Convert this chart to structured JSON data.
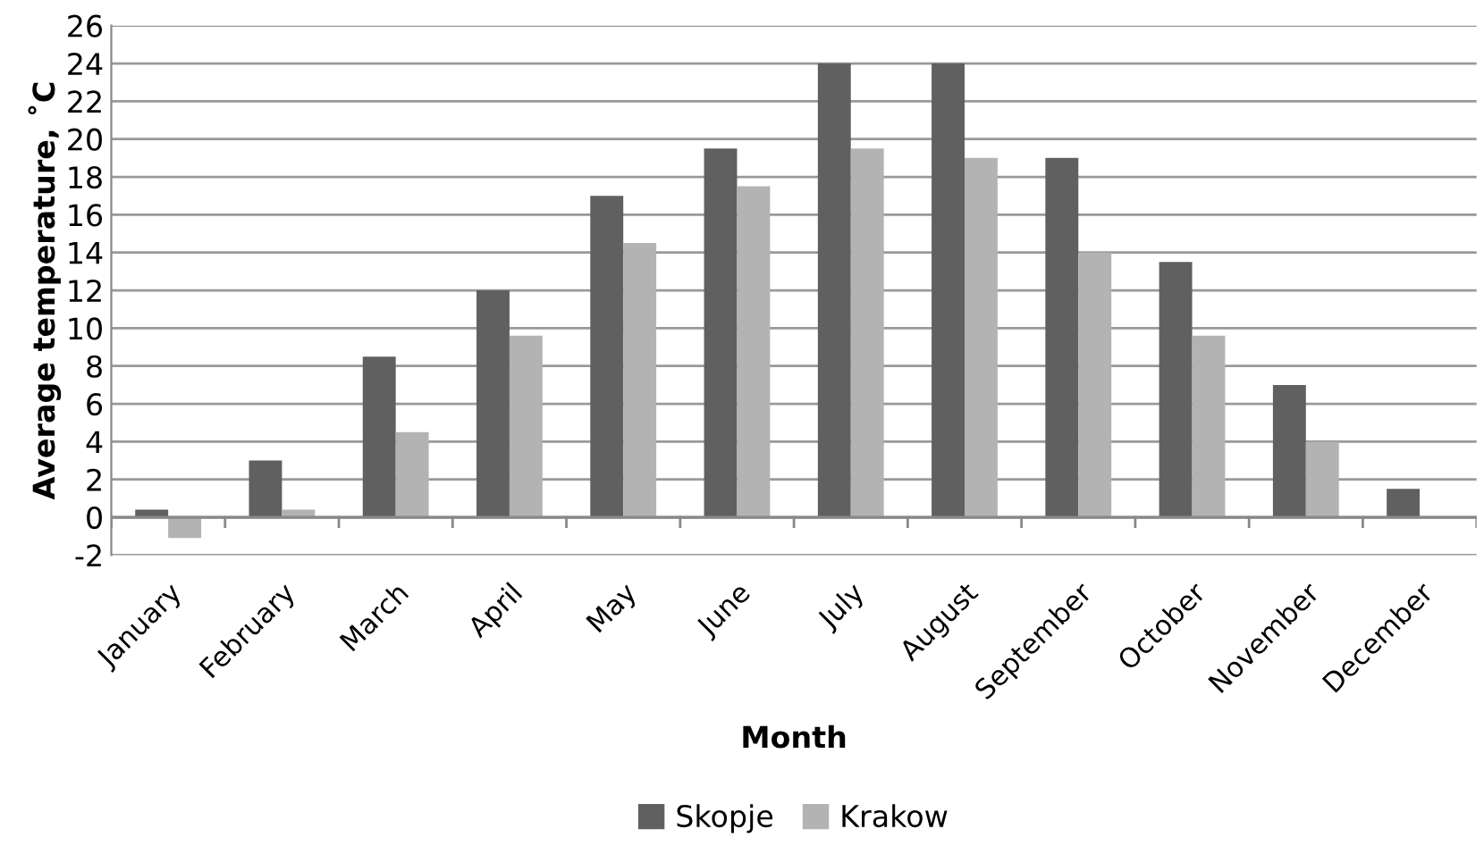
{
  "chart_data": {
    "type": "bar",
    "xlabel": "Month",
    "ylabel": "Average temperature, ˚C",
    "categories": [
      "January",
      "February",
      "March",
      "April",
      "May",
      "June",
      "July",
      "August",
      "September",
      "October",
      "November",
      "December"
    ],
    "series": [
      {
        "name": "Skopje",
        "color": "#606060",
        "values": [
          0.4,
          3,
          8.5,
          12,
          17,
          19.5,
          24,
          24,
          19,
          13.5,
          7,
          1.5
        ]
      },
      {
        "name": "Krakow",
        "color": "#b3b3b3",
        "values": [
          -1.1,
          0.4,
          4.5,
          9.6,
          14.5,
          17.5,
          19.5,
          19,
          14,
          9.6,
          4,
          0
        ]
      }
    ],
    "ylim": [
      -2,
      26
    ],
    "yticks": [
      -2,
      0,
      2,
      4,
      6,
      8,
      10,
      12,
      14,
      16,
      18,
      20,
      22,
      24,
      26
    ],
    "grid": "y",
    "legend": "bottom"
  }
}
